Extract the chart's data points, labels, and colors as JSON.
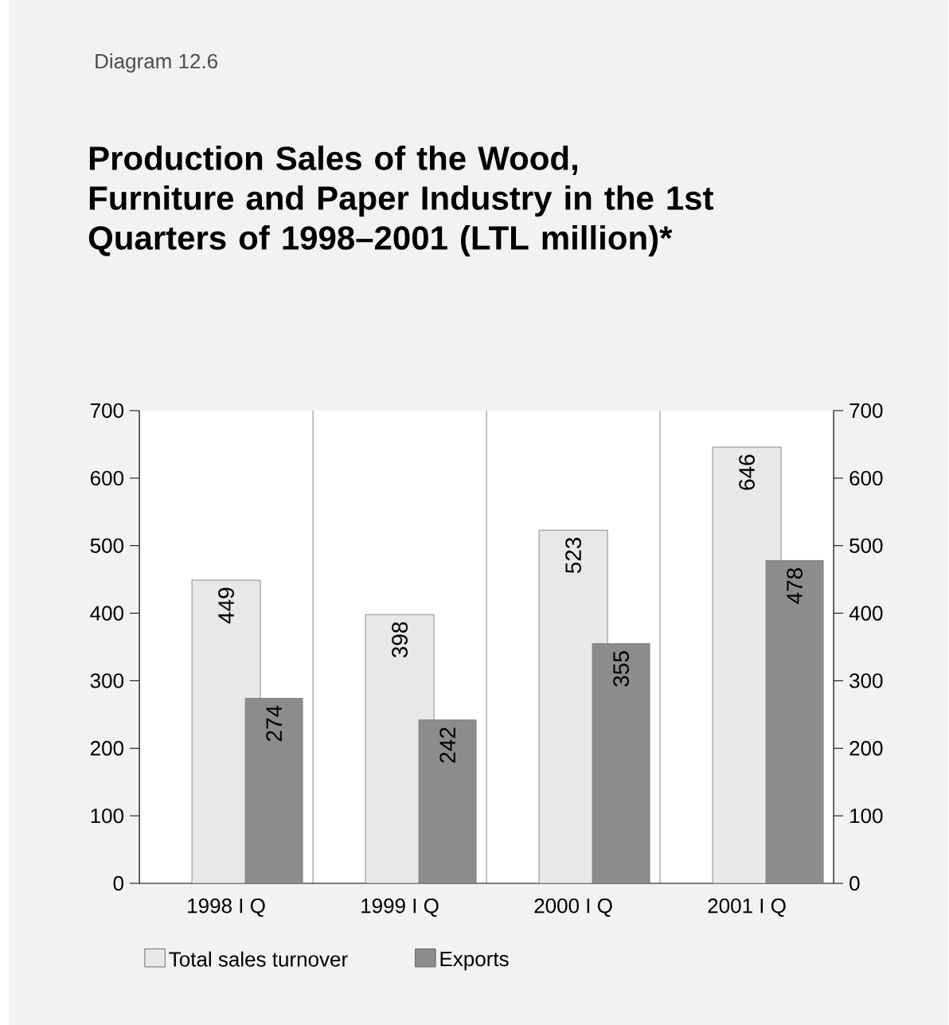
{
  "chart_data": {
    "type": "bar",
    "title": "Production Sales of the Wood, Furniture and Paper  Industry in the 1st Quarters of 1998–2001 (LTL million)*",
    "annotations": [
      "Diagram 12.6"
    ],
    "categories": [
      "1998 I Q",
      "1999 I Q",
      "2000 I Q",
      "2001 I Q"
    ],
    "series": [
      {
        "name": "Total sales turnover",
        "color": "#e8e8e8",
        "values": [
          449,
          398,
          523,
          646
        ]
      },
      {
        "name": "Exports",
        "color": "#8c8c8c",
        "values": [
          274,
          242,
          355,
          478
        ]
      }
    ],
    "ylim": [
      0,
      700
    ],
    "yticks": [
      0,
      100,
      200,
      300,
      400,
      500,
      600,
      700
    ],
    "y2lim": [
      0,
      700
    ],
    "y2ticks": [
      0,
      100,
      200,
      300,
      400,
      500,
      600,
      700
    ],
    "data_labels": true,
    "grid": "x",
    "legend": "bottom"
  }
}
